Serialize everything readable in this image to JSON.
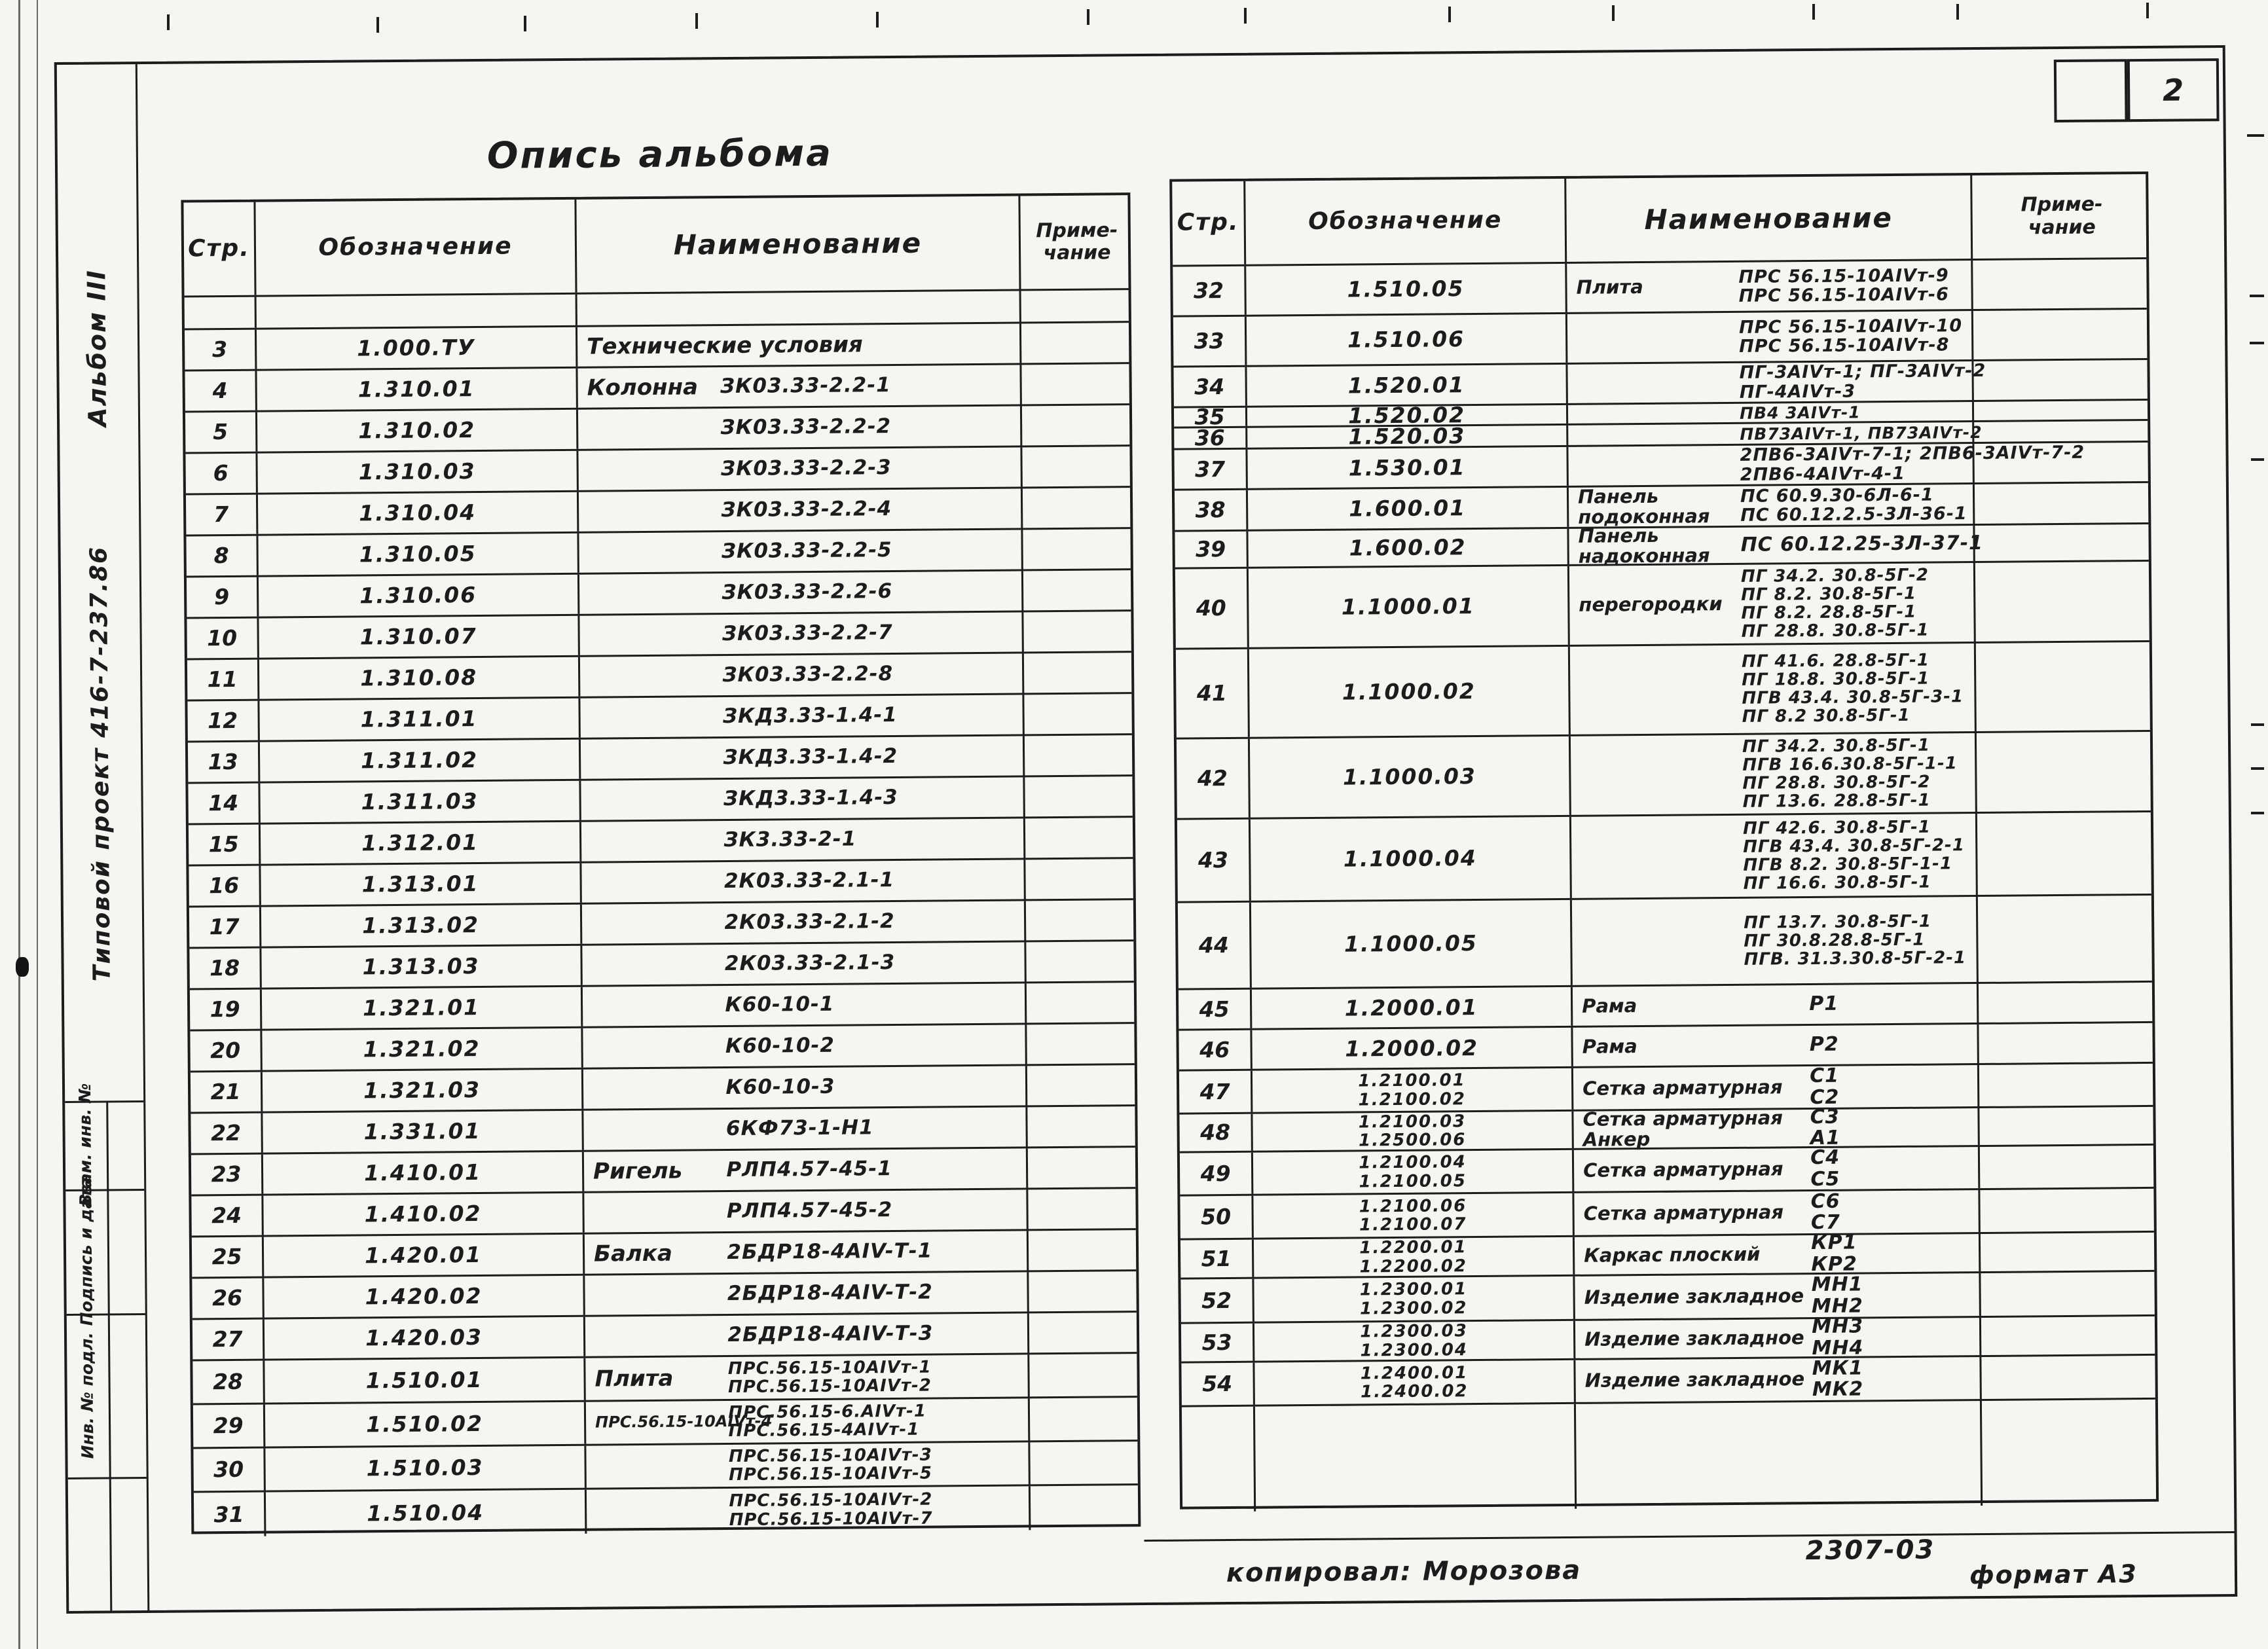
{
  "page_badge": "2",
  "title": "Опись альбома",
  "sidebar": {
    "album": "Альбом III",
    "project": "Типовой проект 416-7-237.86",
    "boxes": [
      "Взам. инв. №",
      "Подпись и дата",
      "Инв. № подл."
    ]
  },
  "footer": {
    "copied": "копировал: Морозова",
    "doc_code": "2307-03",
    "format": "формат А3"
  },
  "headers": {
    "page": "Стр.",
    "designation": "Обозначение",
    "name": "Наименование",
    "note_line1": "Приме-",
    "note_line2": "чание"
  },
  "left_table": {
    "rows": [
      {
        "page": "3",
        "designation": [
          "1.000.ТУ"
        ],
        "label": "Технические условия",
        "label2": "",
        "pre": "",
        "lines": []
      },
      {
        "page": "4",
        "designation": [
          "1.310.01"
        ],
        "label": "Колонна",
        "label2": "",
        "pre": "",
        "lines": [
          "ЗК03.33-2.2-1"
        ]
      },
      {
        "page": "5",
        "designation": [
          "1.310.02"
        ],
        "label": "",
        "label2": "",
        "pre": "",
        "lines": [
          "ЗК03.33-2.2-2"
        ]
      },
      {
        "page": "6",
        "designation": [
          "1.310.03"
        ],
        "label": "",
        "label2": "",
        "pre": "",
        "lines": [
          "ЗК03.33-2.2-3"
        ]
      },
      {
        "page": "7",
        "designation": [
          "1.310.04"
        ],
        "label": "",
        "label2": "",
        "pre": "",
        "lines": [
          "ЗК03.33-2.2-4"
        ]
      },
      {
        "page": "8",
        "designation": [
          "1.310.05"
        ],
        "label": "",
        "label2": "",
        "pre": "",
        "lines": [
          "ЗК03.33-2.2-5"
        ]
      },
      {
        "page": "9",
        "designation": [
          "1.310.06"
        ],
        "label": "",
        "label2": "",
        "pre": "",
        "lines": [
          "ЗК03.33-2.2-6"
        ]
      },
      {
        "page": "10",
        "designation": [
          "1.310.07"
        ],
        "label": "",
        "label2": "",
        "pre": "",
        "lines": [
          "ЗК03.33-2.2-7"
        ]
      },
      {
        "page": "11",
        "designation": [
          "1.310.08"
        ],
        "label": "",
        "label2": "",
        "pre": "",
        "lines": [
          "ЗК03.33-2.2-8"
        ]
      },
      {
        "page": "12",
        "designation": [
          "1.311.01"
        ],
        "label": "",
        "label2": "",
        "pre": "",
        "lines": [
          "ЗКД3.33-1.4-1"
        ]
      },
      {
        "page": "13",
        "designation": [
          "1.311.02"
        ],
        "label": "",
        "label2": "",
        "pre": "",
        "lines": [
          "ЗКД3.33-1.4-2"
        ]
      },
      {
        "page": "14",
        "designation": [
          "1.311.03"
        ],
        "label": "",
        "label2": "",
        "pre": "",
        "lines": [
          "ЗКД3.33-1.4-3"
        ]
      },
      {
        "page": "15",
        "designation": [
          "1.312.01"
        ],
        "label": "",
        "label2": "",
        "pre": "",
        "lines": [
          "ЗК3.33-2-1"
        ]
      },
      {
        "page": "16",
        "designation": [
          "1.313.01"
        ],
        "label": "",
        "label2": "",
        "pre": "",
        "lines": [
          "2К03.33-2.1-1"
        ]
      },
      {
        "page": "17",
        "designation": [
          "1.313.02"
        ],
        "label": "",
        "label2": "",
        "pre": "",
        "lines": [
          "2К03.33-2.1-2"
        ]
      },
      {
        "page": "18",
        "designation": [
          "1.313.03"
        ],
        "label": "",
        "label2": "",
        "pre": "",
        "lines": [
          "2К03.33-2.1-3"
        ]
      },
      {
        "page": "19",
        "designation": [
          "1.321.01"
        ],
        "label": "",
        "label2": "",
        "pre": "",
        "lines": [
          "К60-10-1"
        ]
      },
      {
        "page": "20",
        "designation": [
          "1.321.02"
        ],
        "label": "",
        "label2": "",
        "pre": "",
        "lines": [
          "К60-10-2"
        ]
      },
      {
        "page": "21",
        "designation": [
          "1.321.03"
        ],
        "label": "",
        "label2": "",
        "pre": "",
        "lines": [
          "К60-10-3"
        ]
      },
      {
        "page": "22",
        "designation": [
          "1.331.01"
        ],
        "label": "",
        "label2": "",
        "pre": "",
        "lines": [
          "6КФ73-1-Н1"
        ]
      },
      {
        "page": "23",
        "designation": [
          "1.410.01"
        ],
        "label": "Ригель",
        "label2": "",
        "pre": "",
        "lines": [
          "РЛП4.57-45-1"
        ]
      },
      {
        "page": "24",
        "designation": [
          "1.410.02"
        ],
        "label": "",
        "label2": "",
        "pre": "",
        "lines": [
          "РЛП4.57-45-2"
        ]
      },
      {
        "page": "25",
        "designation": [
          "1.420.01"
        ],
        "label": "Балка",
        "label2": "",
        "pre": "",
        "lines": [
          "2БДР18-4АIV-Т-1"
        ]
      },
      {
        "page": "26",
        "designation": [
          "1.420.02"
        ],
        "label": "",
        "label2": "",
        "pre": "",
        "lines": [
          "2БДР18-4АIV-Т-2"
        ]
      },
      {
        "page": "27",
        "designation": [
          "1.420.03"
        ],
        "label": "",
        "label2": "",
        "pre": "",
        "lines": [
          "2БДР18-4АIV-Т-3"
        ]
      },
      {
        "page": "28",
        "designation": [
          "1.510.01"
        ],
        "label": "Плита",
        "label2": "",
        "pre": "",
        "lines": [
          "ПРС.56.15-10АIVт-1",
          "ПРС.56.15-10АIVт-2"
        ]
      },
      {
        "page": "29",
        "designation": [
          "1.510.02"
        ],
        "label": "",
        "label2": "",
        "pre": "ПРС.56.15-10АIVт-4",
        "lines": [
          "ПРС.56.15-6.АIVт-1",
          "ПРС.56.15-4АIVт-1"
        ]
      },
      {
        "page": "30",
        "designation": [
          "1.510.03"
        ],
        "label": "",
        "label2": "",
        "pre": "",
        "lines": [
          "ПРС.56.15-10АIVт-3",
          "ПРС.56.15-10АIVт-5"
        ]
      },
      {
        "page": "31",
        "designation": [
          "1.510.04"
        ],
        "label": "",
        "label2": "",
        "pre": "",
        "lines": [
          "ПРС.56.15-10АIVт-2",
          "ПРС.56.15-10АIVт-7"
        ]
      }
    ]
  },
  "right_table": {
    "rows": [
      {
        "page": "32",
        "designation": [
          "1.510.05"
        ],
        "label": "Плита",
        "label2": "",
        "pre": "",
        "lines": [
          "ПРС 56.15-10АIVт-9",
          "ПРС 56.15-10АIVт-6"
        ]
      },
      {
        "page": "33",
        "designation": [
          "1.510.06"
        ],
        "label": "",
        "label2": "",
        "pre": "",
        "lines": [
          "ПРС 56.15-10АIVт-10",
          "ПРС 56.15-10АIVт-8"
        ]
      },
      {
        "page": "34",
        "designation": [
          "1.520.01"
        ],
        "label": "",
        "label2": "",
        "pre": "",
        "lines": [
          "ПГ-3АIVт-1; ПГ-3АIVт-2",
          "ПГ-4АIVт-3"
        ]
      },
      {
        "page": "35",
        "designation": [
          "1.520.02"
        ],
        "label": "",
        "label2": "",
        "pre": "",
        "lines": [
          "ПВ4 3АIVт-1"
        ]
      },
      {
        "page": "36",
        "designation": [
          "1.520.03"
        ],
        "label": "",
        "label2": "",
        "pre": "",
        "lines": [
          "ПВ73АIVт-1, ПВ73АIVт-2"
        ]
      },
      {
        "page": "37",
        "designation": [
          "1.530.01"
        ],
        "label": "",
        "label2": "",
        "pre": "",
        "lines": [
          "2ПВ6-3АIVт-7-1; 2ПВ6-3АIVт-7-2",
          "2ПВ6-4АIVт-4-1"
        ]
      },
      {
        "page": "38",
        "designation": [
          "1.600.01"
        ],
        "label": "Панель",
        "label2": "подоконная",
        "pre": "",
        "lines": [
          "ПС 60.9.30-6Л-6-1",
          "ПС 60.12.2.5-3Л-36-1"
        ]
      },
      {
        "page": "39",
        "designation": [
          "1.600.02"
        ],
        "label": "Панель",
        "label2": "надоконная",
        "pre": "",
        "lines": [
          "ПС 60.12.25-3Л-37-1"
        ]
      },
      {
        "page": "40",
        "designation": [
          "1.1000.01"
        ],
        "label": "перегородки",
        "label2": "",
        "pre": "",
        "lines": [
          "ПГ 34.2. 30.8-5Г-2",
          "ПГ 8.2. 30.8-5Г-1",
          "ПГ 8.2. 28.8-5Г-1",
          "ПГ 28.8. 30.8-5Г-1"
        ]
      },
      {
        "page": "41",
        "designation": [
          "1.1000.02"
        ],
        "label": "",
        "label2": "",
        "pre": "",
        "lines": [
          "ПГ 41.6. 28.8-5Г-1",
          "ПГ 18.8. 30.8-5Г-1",
          "ПГВ 43.4. 30.8-5Г-3-1",
          "ПГ 8.2  30.8-5Г-1"
        ]
      },
      {
        "page": "42",
        "designation": [
          "1.1000.03"
        ],
        "label": "",
        "label2": "",
        "pre": "",
        "lines": [
          "ПГ 34.2. 30.8-5Г-1",
          "ПГВ 16.6.30.8-5Г-1-1",
          "ПГ 28.8. 30.8-5Г-2",
          "ПГ 13.6. 28.8-5Г-1"
        ]
      },
      {
        "page": "43",
        "designation": [
          "1.1000.04"
        ],
        "label": "",
        "label2": "",
        "pre": "",
        "lines": [
          "ПГ 42.6. 30.8-5Г-1",
          "ПГВ 43.4. 30.8-5Г-2-1",
          "ПГВ 8.2. 30.8-5Г-1-1",
          "ПГ 16.6. 30.8-5Г-1"
        ]
      },
      {
        "page": "44",
        "designation": [
          "1.1000.05"
        ],
        "label": "",
        "label2": "",
        "pre": "",
        "lines": [
          "ПГ 13.7. 30.8-5Г-1",
          "ПГ 30.8.28.8-5Г-1",
          "ПГВ. 31.3.30.8-5Г-2-1"
        ]
      },
      {
        "page": "45",
        "designation": [
          "1.2000.01"
        ],
        "label": "Рама",
        "label2": "",
        "pre": "",
        "lines": [
          "Р1"
        ]
      },
      {
        "page": "46",
        "designation": [
          "1.2000.02"
        ],
        "label": "Рама",
        "label2": "",
        "pre": "",
        "lines": [
          "Р2"
        ]
      },
      {
        "page": "47",
        "designation": [
          "1.2100.01",
          "1.2100.02"
        ],
        "label": "Сетка арматурная",
        "label2": "",
        "pre": "",
        "lines": [
          "С1",
          "С2"
        ]
      },
      {
        "page": "48",
        "designation": [
          "1.2100.03",
          "1.2500.06"
        ],
        "label": "Сетка арматурная",
        "label2": "Анкер",
        "pre": "",
        "lines": [
          "С3",
          "А1"
        ]
      },
      {
        "page": "49",
        "designation": [
          "1.2100.04",
          "1.2100.05"
        ],
        "label": "Сетка арматурная",
        "label2": "",
        "pre": "",
        "lines": [
          "С4",
          "С5"
        ]
      },
      {
        "page": "50",
        "designation": [
          "1.2100.06",
          "1.2100.07"
        ],
        "label": "Сетка арматурная",
        "label2": "",
        "pre": "",
        "lines": [
          "С6",
          "С7"
        ]
      },
      {
        "page": "51",
        "designation": [
          "1.2200.01",
          "1.2200.02"
        ],
        "label": "Каркас плоский",
        "label2": "",
        "pre": "",
        "lines": [
          "КР1",
          "КР2"
        ]
      },
      {
        "page": "52",
        "designation": [
          "1.2300.01",
          "1.2300.02"
        ],
        "label": "Изделие закладное",
        "label2": "",
        "pre": "",
        "lines": [
          "МН1",
          "МН2"
        ]
      },
      {
        "page": "53",
        "designation": [
          "1.2300.03",
          "1.2300.04"
        ],
        "label": "Изделие закладное",
        "label2": "",
        "pre": "",
        "lines": [
          "МН3",
          "МН4"
        ]
      },
      {
        "page": "54",
        "designation": [
          "1.2400.01",
          "1.2400.02"
        ],
        "label": "Изделие закладное",
        "label2": "",
        "pre": "",
        "lines": [
          "МК1",
          "МК2"
        ]
      }
    ]
  }
}
